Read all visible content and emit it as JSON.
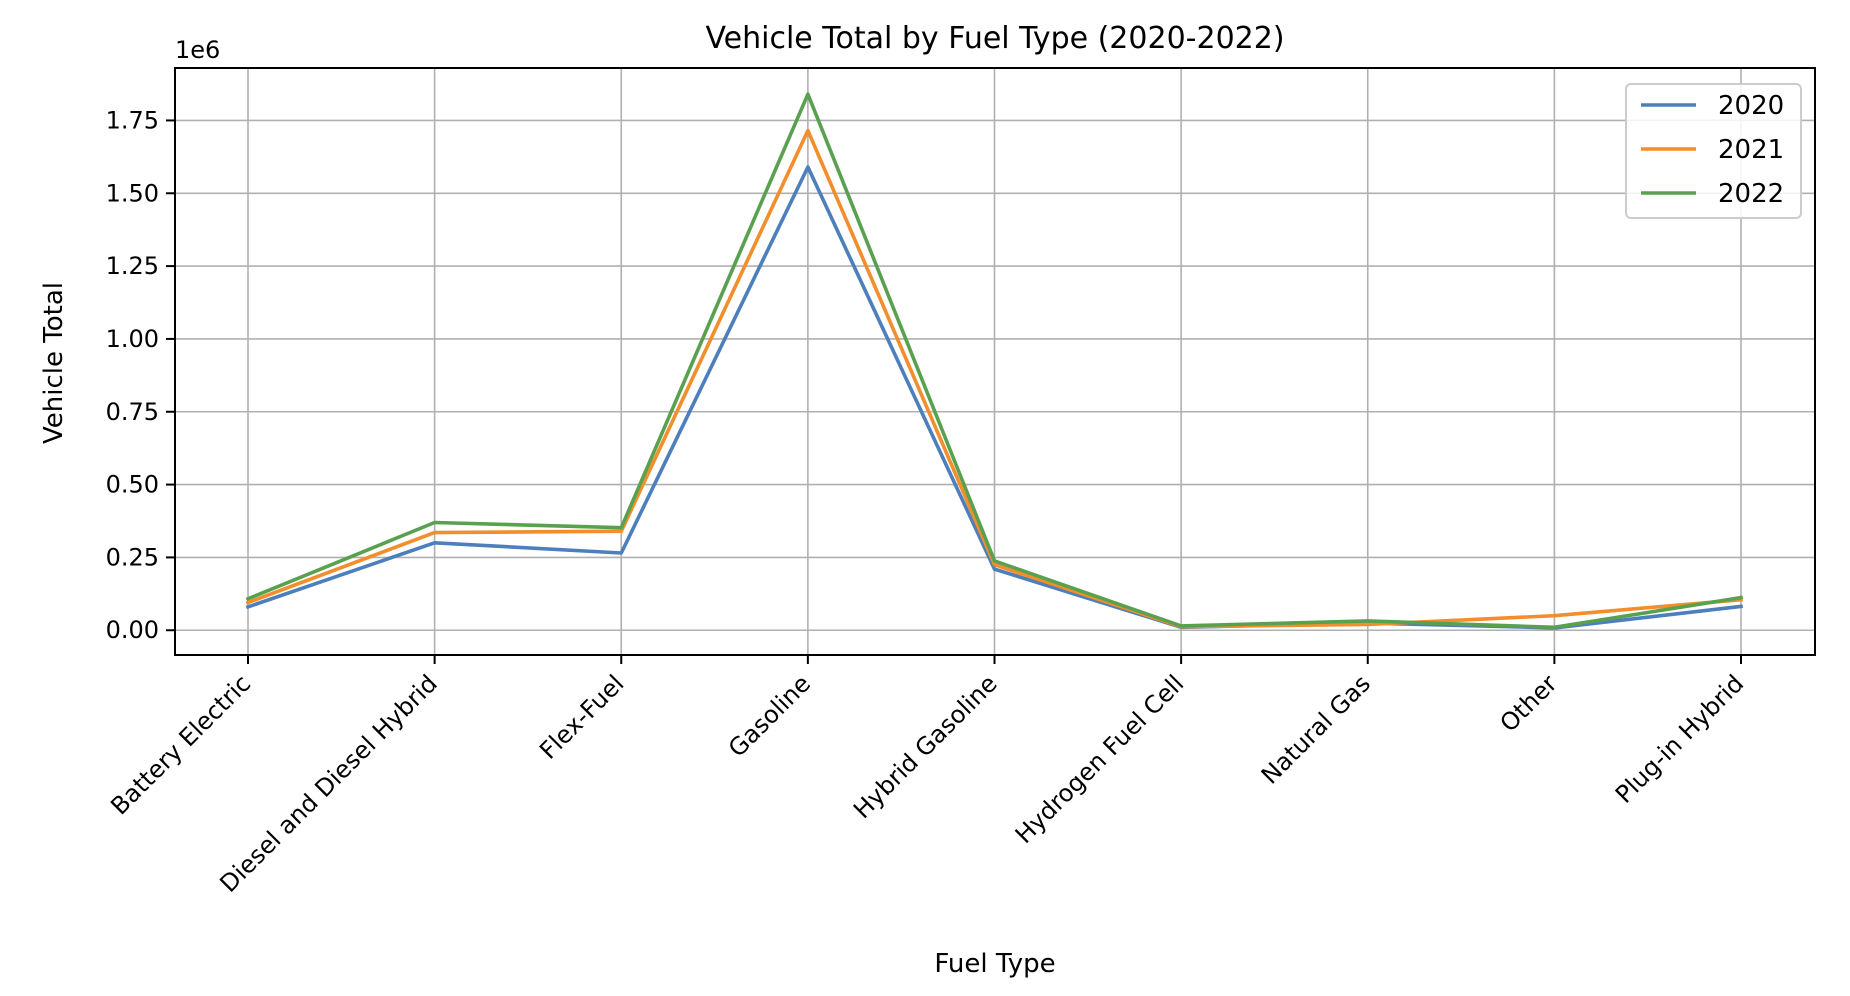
{
  "chart_data": {
    "type": "line",
    "title": "Vehicle Total by Fuel Type (2020-2022)",
    "xlabel": "Fuel Type",
    "ylabel": "Vehicle Total",
    "y_offset_label": "1e6",
    "y_scale_factor": 1000000,
    "categories": [
      "Battery Electric",
      "Diesel and Diesel Hybrid",
      "Flex-Fuel",
      "Gasoline",
      "Hybrid Gasoline",
      "Hydrogen Fuel Cell",
      "Natural Gas",
      "Other",
      "Plug-in Hybrid"
    ],
    "series": [
      {
        "name": "2020",
        "color": "#4c7fbb",
        "values": [
          80000,
          300000,
          265000,
          1590000,
          210000,
          10000,
          25000,
          8000,
          82000
        ]
      },
      {
        "name": "2021",
        "color": "#f28e2b",
        "values": [
          95000,
          335000,
          340000,
          1715000,
          225000,
          12000,
          20000,
          50000,
          105000
        ]
      },
      {
        "name": "2022",
        "color": "#59a14f",
        "values": [
          108000,
          370000,
          352000,
          1840000,
          238000,
          15000,
          32000,
          10000,
          112000
        ]
      }
    ],
    "ylim": [
      -85000,
      1930000
    ],
    "yticks": [
      "0.00",
      "0.25",
      "0.50",
      "0.75",
      "1.00",
      "1.25",
      "1.50",
      "1.75"
    ],
    "ytick_values": [
      0,
      250000,
      500000,
      750000,
      1000000,
      1250000,
      1500000,
      1750000
    ],
    "grid": true,
    "legend_position": "top-right"
  }
}
